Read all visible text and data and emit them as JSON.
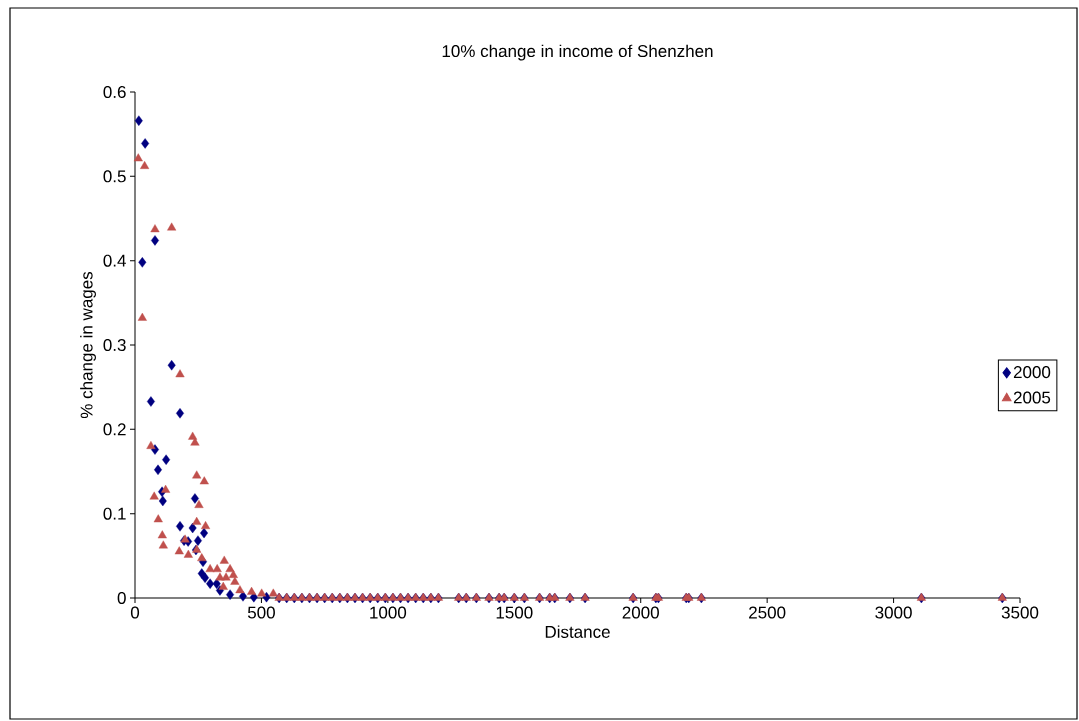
{
  "chart_data": {
    "type": "scatter",
    "title": "10% change in income of Shenzhen",
    "xlabel": "Distance",
    "ylabel": "% change in wages",
    "xlim": [
      0,
      3500
    ],
    "xticks": [
      0,
      500,
      1000,
      1500,
      2000,
      2500,
      3000,
      3500
    ],
    "ylim": [
      0,
      0.6
    ],
    "yticks": [
      0,
      0.1,
      0.2,
      0.3,
      0.4,
      0.5,
      0.6
    ],
    "legend": "right",
    "series": [
      {
        "name": "2000",
        "color": "#000080",
        "marker": "diamond",
        "x": [
          15,
          40,
          79,
          29,
          145,
          63,
          178,
          79,
          123,
          91,
          107,
          110,
          237,
          178,
          228,
          273,
          194,
          210,
          249,
          241,
          269,
          264,
          277,
          297,
          323,
          336,
          376,
          427,
          470,
          520,
          570,
          600,
          630,
          660,
          690,
          720,
          750,
          780,
          810,
          840,
          870,
          900,
          930,
          960,
          990,
          1020,
          1050,
          1080,
          1110,
          1140,
          1170,
          1200,
          1280,
          1310,
          1350,
          1400,
          1440,
          1460,
          1500,
          1540,
          1600,
          1640,
          1660,
          1720,
          1780,
          1970,
          2060,
          2070,
          2180,
          2190,
          2240,
          3110,
          3430
        ],
        "values": [
          0.566,
          0.539,
          0.424,
          0.398,
          0.276,
          0.233,
          0.219,
          0.176,
          0.164,
          0.152,
          0.126,
          0.115,
          0.118,
          0.085,
          0.083,
          0.077,
          0.068,
          0.067,
          0.068,
          0.057,
          0.043,
          0.029,
          0.024,
          0.017,
          0.017,
          0.009,
          0.004,
          0.002,
          0.001,
          0.001,
          0,
          0,
          0,
          0,
          0,
          0,
          0,
          0,
          0,
          0,
          0,
          0,
          0,
          0,
          0,
          0,
          0,
          0,
          0,
          0,
          0,
          0,
          0,
          0,
          0,
          0,
          0,
          0,
          0,
          0,
          0,
          0,
          0,
          0,
          0,
          0,
          0,
          0,
          0,
          0,
          0,
          0,
          0
        ]
      },
      {
        "name": "2005",
        "color": "#c0504d",
        "marker": "triangle",
        "x": [
          13,
          38,
          79,
          145,
          29,
          178,
          228,
          237,
          63,
          244,
          274,
          121,
          76,
          253,
          92,
          244,
          279,
          108,
          198,
          112,
          175,
          211,
          264,
          244,
          297,
          325,
          353,
          376,
          389,
          395,
          360,
          336,
          349,
          415,
          461,
          501,
          547,
          570,
          600,
          630,
          660,
          690,
          720,
          750,
          780,
          810,
          840,
          870,
          900,
          930,
          960,
          990,
          1020,
          1050,
          1080,
          1110,
          1140,
          1170,
          1200,
          1280,
          1310,
          1350,
          1400,
          1440,
          1460,
          1500,
          1540,
          1600,
          1640,
          1660,
          1720,
          1780,
          1970,
          2060,
          2070,
          2180,
          2190,
          2240,
          3110,
          3430
        ],
        "values": [
          0.521,
          0.512,
          0.437,
          0.439,
          0.332,
          0.265,
          0.191,
          0.184,
          0.18,
          0.145,
          0.138,
          0.128,
          0.12,
          0.11,
          0.093,
          0.09,
          0.085,
          0.074,
          0.069,
          0.062,
          0.055,
          0.051,
          0.047,
          0.057,
          0.034,
          0.034,
          0.044,
          0.034,
          0.027,
          0.019,
          0.024,
          0.024,
          0.013,
          0.009,
          0.007,
          0.005,
          0.005,
          0,
          0,
          0,
          0,
          0,
          0,
          0,
          0,
          0,
          0,
          0,
          0,
          0,
          0,
          0,
          0,
          0,
          0,
          0,
          0,
          0,
          0,
          0,
          0,
          0,
          0,
          0,
          0,
          0,
          0,
          0,
          0,
          0,
          0,
          0,
          0,
          0,
          0,
          0,
          0,
          0,
          0,
          0
        ]
      }
    ]
  }
}
